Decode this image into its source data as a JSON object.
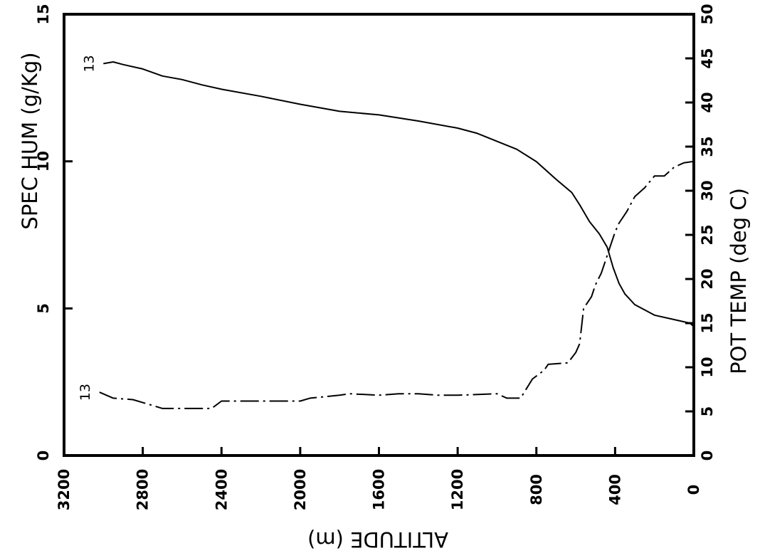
{
  "chart_data": {
    "type": "line",
    "title": "",
    "xlabel": "ALTITUDE (m)",
    "ylabel_left": "SPEC HUM (g/Kg)",
    "ylabel_right": "POT TEMP (deg C)",
    "xlim": [
      3200,
      0
    ],
    "ylim_left": [
      0,
      15
    ],
    "ylim_right": [
      0,
      50
    ],
    "x_ticks": [
      "3200",
      "2800",
      "2400",
      "2000",
      "1600",
      "1200",
      "800",
      "400",
      "0"
    ],
    "y_left_ticks": [
      "0",
      "5",
      "10",
      "15"
    ],
    "y_right_ticks": [
      "0",
      "5",
      "10",
      "15",
      "20",
      "25",
      "30",
      "35",
      "40",
      "45",
      "50"
    ],
    "grid": false,
    "series": [
      {
        "label": "13",
        "axis": "right",
        "style": "solid",
        "x": [
          3000,
          2950,
          2900,
          2800,
          2700,
          2600,
          2500,
          2400,
          2200,
          2000,
          1800,
          1600,
          1400,
          1200,
          1100,
          1000,
          900,
          800,
          700,
          620,
          580,
          530,
          480,
          440,
          410,
          380,
          350,
          300,
          200,
          100,
          20,
          0
        ],
        "values": [
          44.4,
          44.6,
          44.3,
          43.8,
          43.0,
          42.6,
          42.0,
          41.5,
          40.7,
          39.8,
          39.0,
          38.6,
          37.9,
          37.1,
          36.5,
          35.6,
          34.7,
          33.3,
          31.3,
          29.8,
          28.4,
          26.5,
          25.1,
          23.6,
          21.3,
          19.5,
          18.3,
          17.1,
          15.9,
          15.4,
          15.0,
          14.6
        ]
      },
      {
        "label": "13",
        "axis": "left",
        "style": "dash-dot",
        "x": [
          3020,
          2950,
          2850,
          2750,
          2700,
          2600,
          2450,
          2400,
          2200,
          2000,
          1950,
          1800,
          1750,
          1600,
          1500,
          1400,
          1300,
          1200,
          1000,
          950,
          880,
          820,
          760,
          740,
          640,
          600,
          580,
          560,
          520,
          500,
          470,
          440,
          420,
          400,
          380,
          340,
          300,
          250,
          200,
          150,
          100,
          50,
          0
        ],
        "values": [
          2.15,
          1.95,
          1.9,
          1.7,
          1.6,
          1.6,
          1.6,
          1.85,
          1.85,
          1.85,
          1.95,
          2.05,
          2.1,
          2.05,
          2.1,
          2.1,
          2.05,
          2.05,
          2.1,
          1.95,
          1.95,
          2.6,
          2.9,
          3.1,
          3.15,
          3.5,
          3.8,
          5.0,
          5.4,
          5.8,
          6.2,
          6.8,
          7.2,
          7.6,
          7.9,
          8.3,
          8.8,
          9.1,
          9.5,
          9.5,
          9.8,
          9.95,
          10.0
        ]
      }
    ]
  }
}
